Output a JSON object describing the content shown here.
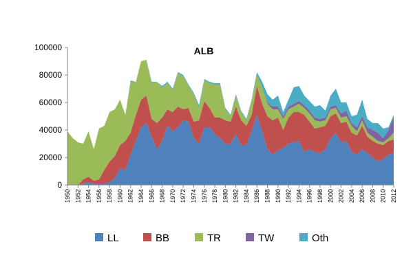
{
  "chart_data": {
    "type": "area",
    "stacked": true,
    "title": "ALB",
    "xlabel": "",
    "ylabel": "",
    "ylim": [
      0,
      100000
    ],
    "yticks": [
      "0",
      "20000",
      "40000",
      "60000",
      "80000",
      "100000"
    ],
    "xtick_labels": [
      "1950",
      "1952",
      "1954",
      "1956",
      "1958",
      "1960",
      "1962",
      "1964",
      "1966",
      "1968",
      "1970",
      "1972",
      "1974",
      "1976",
      "1978",
      "1980",
      "1982",
      "1984",
      "1986",
      "1988",
      "1990",
      "1992",
      "1994",
      "1996",
      "1998",
      "2000",
      "2002",
      "2004",
      "2006",
      "2008",
      "2010",
      "2012"
    ],
    "grid": false,
    "legend": "bottom",
    "x": [
      1950,
      1951,
      1952,
      1953,
      1954,
      1955,
      1956,
      1957,
      1958,
      1959,
      1960,
      1961,
      1962,
      1963,
      1964,
      1965,
      1966,
      1967,
      1968,
      1969,
      1970,
      1971,
      1972,
      1973,
      1974,
      1975,
      1976,
      1977,
      1978,
      1979,
      1980,
      1981,
      1982,
      1983,
      1984,
      1985,
      1986,
      1987,
      1988,
      1989,
      1990,
      1991,
      1992,
      1993,
      1994,
      1995,
      1996,
      1997,
      1998,
      1999,
      2000,
      2001,
      2002,
      2003,
      2004,
      2005,
      2006,
      2007,
      2008,
      2009,
      2010,
      2011,
      2012
    ],
    "series": [
      {
        "name": "LL",
        "color": "#4f81bd",
        "values": [
          0,
          0,
          0,
          1000,
          2000,
          1000,
          1000,
          1000,
          2000,
          5000,
          12000,
          11000,
          22000,
          32000,
          42000,
          45000,
          35000,
          26000,
          32000,
          43000,
          39000,
          42000,
          47000,
          46000,
          34000,
          30000,
          42000,
          42000,
          37000,
          34000,
          30000,
          30000,
          37000,
          29000,
          29000,
          39000,
          51000,
          39000,
          26000,
          22000,
          25000,
          27000,
          30000,
          31000,
          32000,
          24000,
          26000,
          24000,
          23000,
          26000,
          34000,
          38000,
          31000,
          32000,
          24000,
          22000,
          26000,
          23000,
          20000,
          17000,
          19000,
          22000,
          23000
        ]
      },
      {
        "name": "BB",
        "color": "#c0504d",
        "values": [
          0,
          0,
          0,
          3000,
          4000,
          2000,
          3000,
          10000,
          15000,
          16000,
          17000,
          21000,
          16000,
          19000,
          20000,
          20000,
          13000,
          19000,
          17000,
          12000,
          14000,
          15000,
          8000,
          10000,
          12000,
          17000,
          19000,
          14000,
          12000,
          15000,
          17000,
          16000,
          20000,
          18000,
          14000,
          12000,
          21000,
          20000,
          24000,
          25000,
          24000,
          13000,
          19000,
          22000,
          21000,
          27000,
          20000,
          17000,
          19000,
          17000,
          16000,
          14000,
          14000,
          14000,
          14000,
          14000,
          17000,
          12000,
          12000,
          13000,
          10000,
          10000,
          10000
        ]
      },
      {
        "name": "TR",
        "color": "#9bbb59",
        "values": [
          39000,
          34000,
          31000,
          26000,
          33000,
          23000,
          37000,
          32000,
          36000,
          34000,
          33000,
          19000,
          37000,
          24000,
          28000,
          26000,
          26000,
          30000,
          22000,
          19000,
          16000,
          24000,
          24000,
          16000,
          20000,
          9000,
          15000,
          18000,
          24000,
          24000,
          8000,
          4000,
          8000,
          6000,
          4000,
          10000,
          8000,
          12000,
          9000,
          8000,
          6000,
          8000,
          6000,
          4000,
          6000,
          5000,
          6000,
          6000,
          4000,
          4000,
          5000,
          4000,
          4000,
          4000,
          5000,
          3000,
          4000,
          3000,
          3000,
          2000,
          2000,
          2000,
          5000
        ]
      },
      {
        "name": "TW",
        "color": "#8064a2",
        "values": [
          0,
          0,
          0,
          0,
          0,
          0,
          0,
          0,
          0,
          0,
          0,
          0,
          0,
          0,
          0,
          0,
          0,
          0,
          0,
          0,
          0,
          0,
          0,
          0,
          0,
          0,
          0,
          0,
          0,
          0,
          0,
          0,
          0,
          0,
          0,
          0,
          0,
          0,
          1000,
          2000,
          2000,
          2000,
          2000,
          2000,
          2000,
          2000,
          2000,
          2000,
          2000,
          2000,
          2000,
          2000,
          3000,
          4000,
          2000,
          3000,
          3000,
          4000,
          5000,
          6000,
          3000,
          6000,
          11000
        ]
      },
      {
        "name": "Oth",
        "color": "#4bacc6",
        "values": [
          0,
          0,
          0,
          0,
          0,
          0,
          0,
          0,
          0,
          0,
          0,
          0,
          1000,
          0,
          0,
          0,
          1000,
          0,
          1000,
          1000,
          1000,
          1000,
          1000,
          1000,
          1000,
          2000,
          1000,
          1000,
          1000,
          1000,
          1000,
          1000,
          1000,
          1000,
          1000,
          1000,
          2000,
          4000,
          6000,
          5000,
          8000,
          3000,
          5000,
          12000,
          11000,
          7000,
          7000,
          8000,
          10000,
          5000,
          8000,
          12000,
          8000,
          6000,
          5000,
          9000,
          12000,
          6000,
          5000,
          7000,
          7000,
          2000,
          2000
        ]
      }
    ]
  }
}
